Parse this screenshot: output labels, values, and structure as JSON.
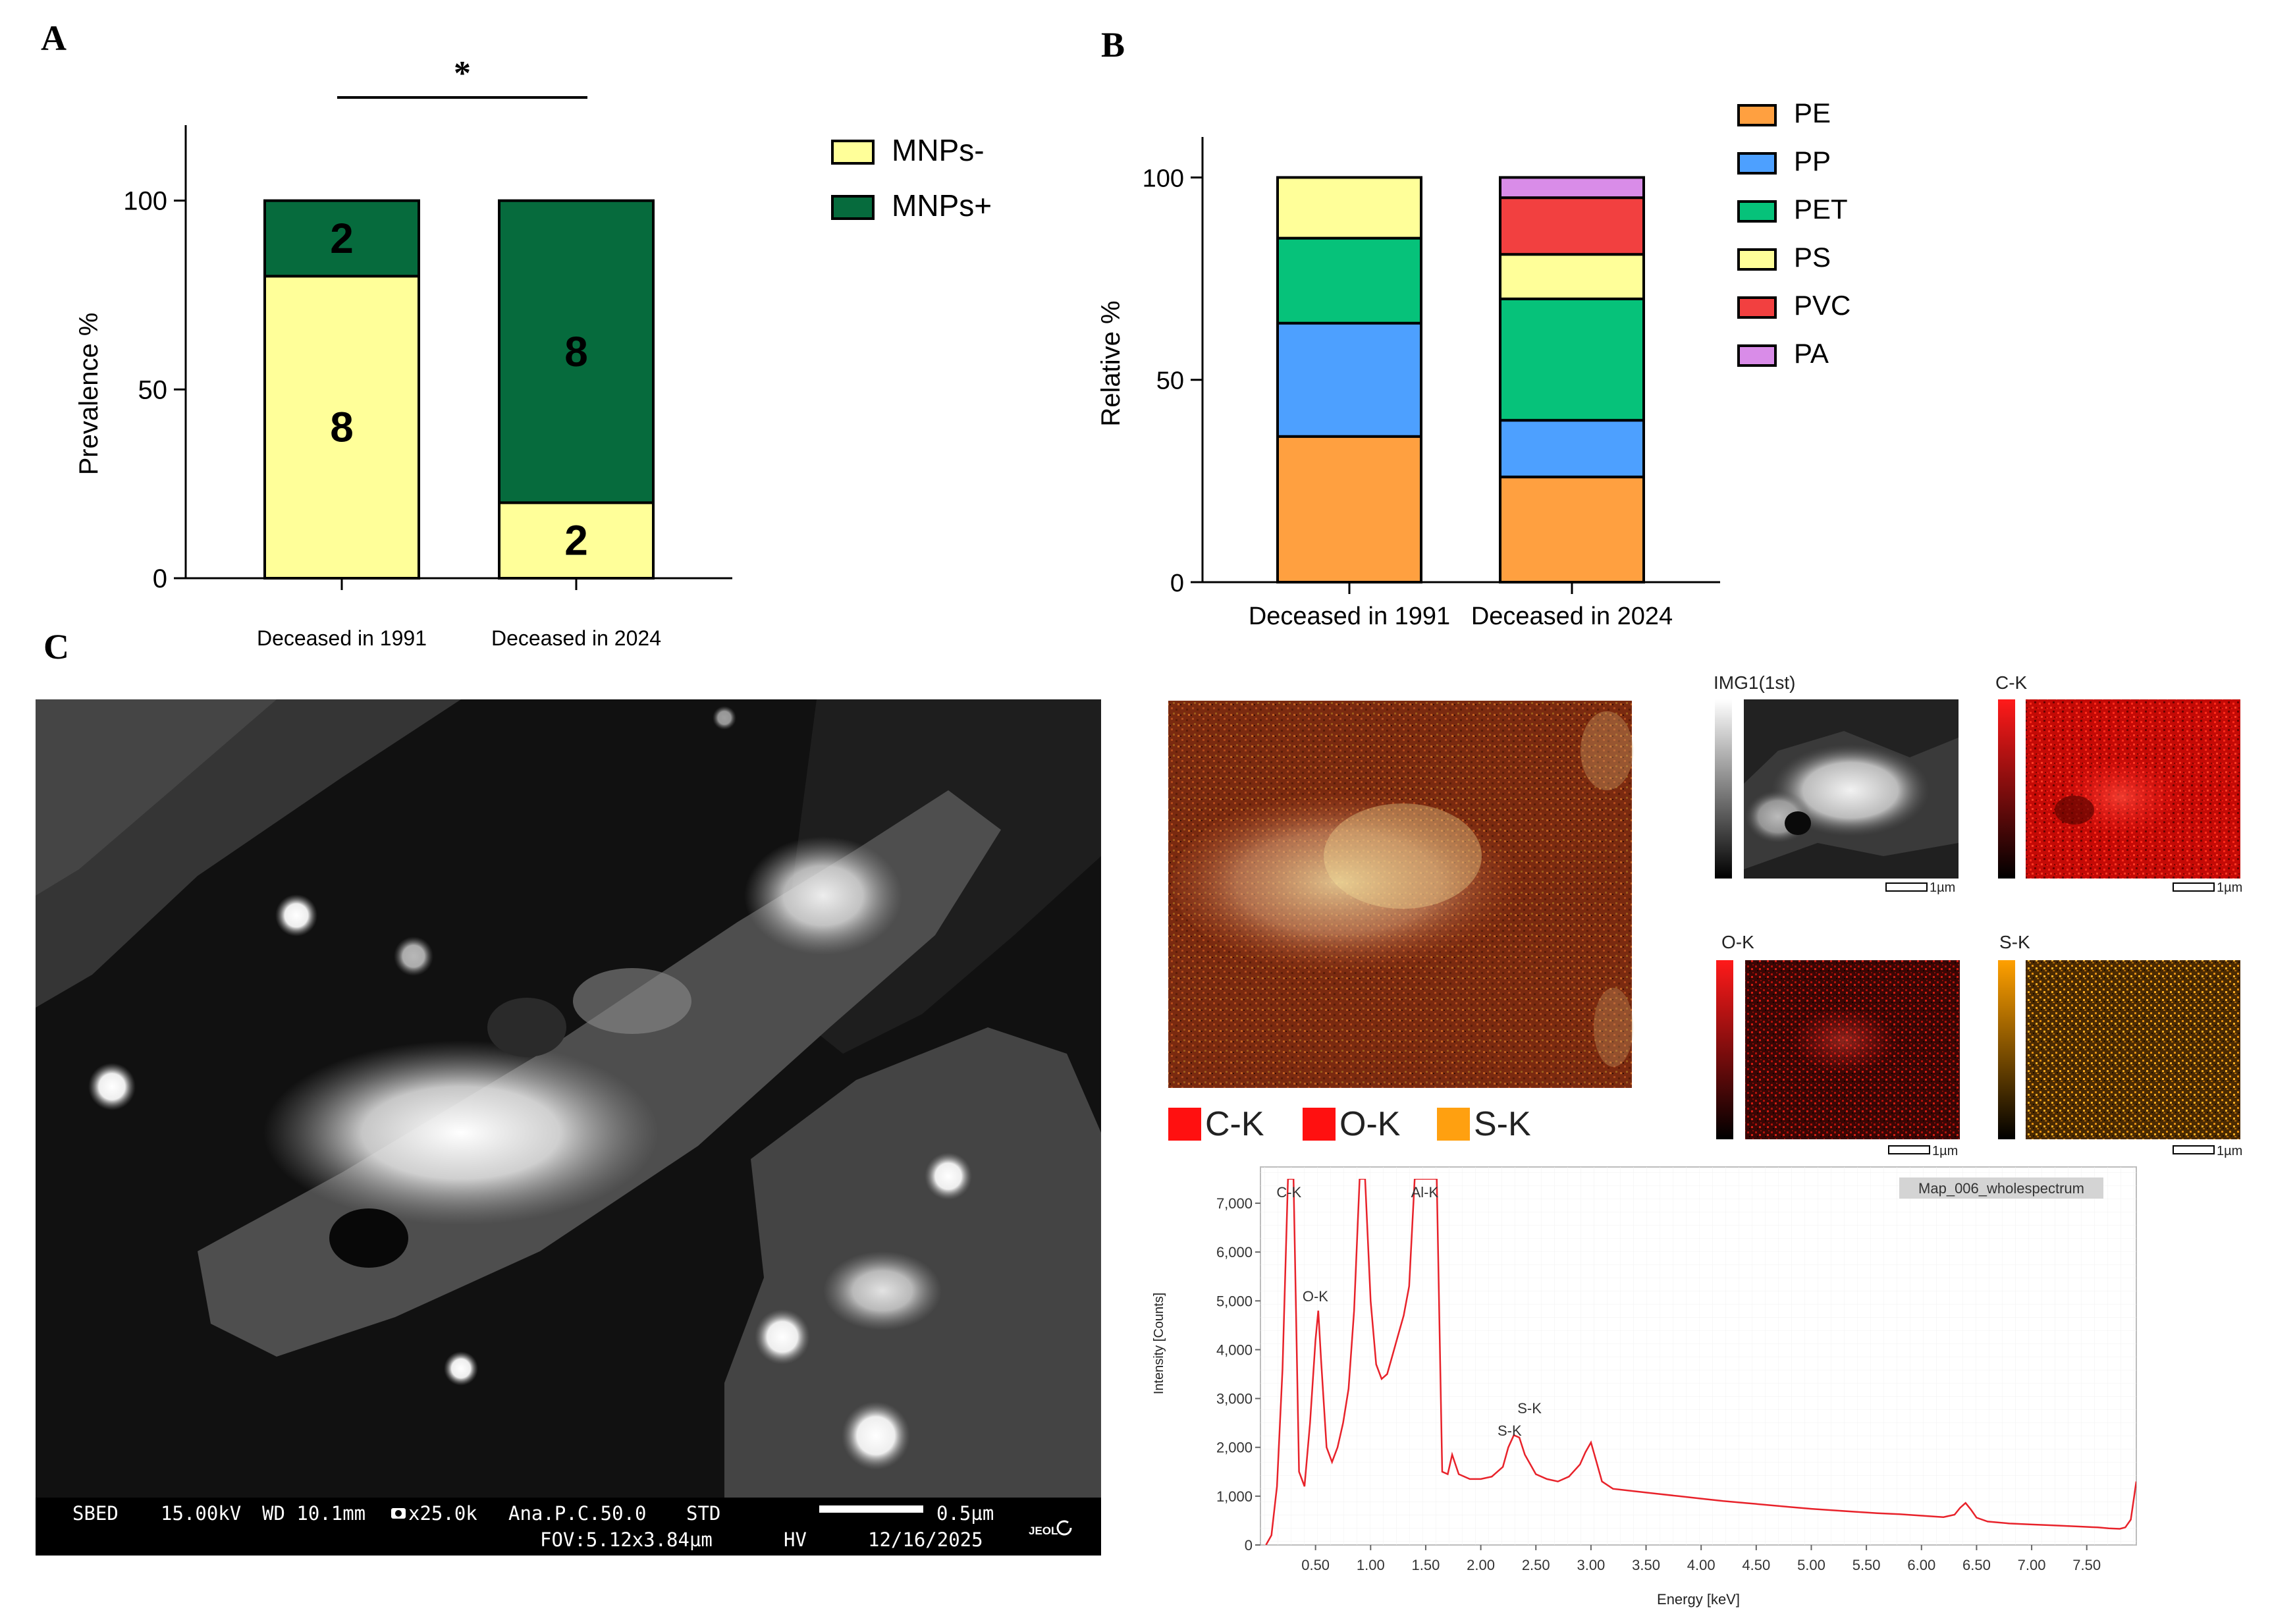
{
  "panels": {
    "a": "A",
    "b": "B",
    "c": "C"
  },
  "chart_data": [
    {
      "id": "A",
      "type": "bar",
      "stacked": true,
      "categories": [
        "Deceased in 1991",
        "Deceased in 2024"
      ],
      "series": [
        {
          "name": "MNPs-",
          "values": [
            80,
            20
          ],
          "labels": [
            "8",
            "2"
          ],
          "color": "#ffff99"
        },
        {
          "name": "MNPs+",
          "values": [
            20,
            80
          ],
          "labels": [
            "2",
            "8"
          ],
          "color": "#066b3d"
        }
      ],
      "ylabel": "Prevalence %",
      "ylim": [
        0,
        120
      ],
      "yticks": [
        0,
        50,
        100
      ],
      "significance": "*",
      "legend": "top-right"
    },
    {
      "id": "B",
      "type": "bar",
      "stacked": true,
      "categories": [
        "Deceased in 1991",
        "Deceased in 2024"
      ],
      "series": [
        {
          "name": "PE",
          "values": [
            36,
            26
          ],
          "color": "#ffa040"
        },
        {
          "name": "PP",
          "values": [
            28,
            14
          ],
          "color": "#4da0ff"
        },
        {
          "name": "PET",
          "values": [
            21,
            30
          ],
          "color": "#06c27a"
        },
        {
          "name": "PS",
          "values": [
            15,
            11
          ],
          "color": "#ffff99"
        },
        {
          "name": "PVC",
          "values": [
            0,
            14
          ],
          "color": "#f24040"
        },
        {
          "name": "PA",
          "values": [
            0,
            5
          ],
          "color": "#d98ce8"
        }
      ],
      "ylabel": "Relative %",
      "ylim": [
        0,
        110
      ],
      "yticks": [
        0,
        50,
        100
      ],
      "legend": "top-right"
    },
    {
      "id": "C-spectrum",
      "type": "line",
      "title": "Map_006_wholespectrum",
      "xlabel": "Energy [keV]",
      "ylabel": "Intensity [Counts]",
      "xlim": [
        0.0,
        7.95
      ],
      "ylim": [
        0,
        7500
      ],
      "xticks": [
        "0.50",
        "1.00",
        "1.50",
        "2.00",
        "2.50",
        "3.00",
        "3.50",
        "4.00",
        "4.50",
        "5.00",
        "5.50",
        "6.00",
        "6.50",
        "7.00",
        "7.50"
      ],
      "yticks": [
        "0",
        "1,000",
        "2,000",
        "3,000",
        "4,000",
        "5,000",
        "6,000",
        "7,000"
      ],
      "peaks": [
        {
          "label": "C-K",
          "energy": 0.277
        },
        {
          "label": "O-K",
          "energy": 0.525
        },
        {
          "label": "Al-K",
          "energy": 1.486
        },
        {
          "label": "S-K",
          "energy": 2.307
        },
        {
          "label": "S-K",
          "energy": 2.464
        }
      ],
      "series": [
        {
          "color": "#e8222a",
          "x": [
            0.05,
            0.1,
            0.15,
            0.2,
            0.25,
            0.277,
            0.3,
            0.35,
            0.4,
            0.45,
            0.5,
            0.525,
            0.55,
            0.6,
            0.65,
            0.7,
            0.75,
            0.8,
            0.85,
            0.9,
            0.95,
            1.0,
            1.05,
            1.1,
            1.15,
            1.2,
            1.25,
            1.3,
            1.35,
            1.4,
            1.45,
            1.486,
            1.52,
            1.55,
            1.6,
            1.65,
            1.7,
            1.74,
            1.8,
            1.9,
            2.0,
            2.1,
            2.2,
            2.25,
            2.3,
            2.35,
            2.4,
            2.45,
            2.5,
            2.6,
            2.7,
            2.8,
            2.9,
            2.95,
            3.0,
            3.05,
            3.1,
            3.2,
            3.4,
            3.6,
            3.8,
            4.0,
            4.2,
            4.4,
            4.6,
            4.8,
            5.0,
            5.2,
            5.4,
            5.6,
            5.8,
            6.0,
            6.2,
            6.3,
            6.35,
            6.4,
            6.45,
            6.5,
            6.6,
            6.8,
            7.0,
            7.2,
            7.4,
            7.6,
            7.7,
            7.8,
            7.85,
            7.9,
            7.95
          ],
          "y": [
            0,
            200,
            1200,
            3600,
            7500,
            7500,
            7500,
            1500,
            1200,
            2500,
            4200,
            4800,
            3800,
            2000,
            1700,
            2000,
            2500,
            3200,
            4800,
            7500,
            7500,
            5000,
            3700,
            3400,
            3500,
            3900,
            4300,
            4700,
            5300,
            7500,
            7500,
            7500,
            7500,
            7500,
            7500,
            1500,
            1450,
            1850,
            1450,
            1350,
            1350,
            1400,
            1600,
            2000,
            2250,
            2200,
            1850,
            1650,
            1450,
            1350,
            1300,
            1400,
            1650,
            1900,
            2100,
            1700,
            1300,
            1150,
            1100,
            1050,
            1000,
            950,
            900,
            860,
            820,
            780,
            740,
            710,
            680,
            650,
            630,
            600,
            570,
            620,
            760,
            860,
            720,
            560,
            480,
            440,
            420,
            400,
            380,
            360,
            340,
            330,
            360,
            520,
            1300
          ]
        }
      ]
    }
  ],
  "sem": {
    "info_left": "SBED",
    "info_kv": "15.00kV",
    "info_wd": "WD 10.1mm",
    "info_mag": "x25.0k",
    "info_ana": "Ana.P.C.50.0",
    "info_std": "STD",
    "info_scale": "0.5µm",
    "info_fov": "FOV:5.12x3.84µm",
    "info_hv": "HV",
    "info_date": "12/16/2025",
    "brand": "JEOL"
  },
  "eds": {
    "legend": [
      "C-K",
      "O-K",
      "S-K"
    ],
    "legend_colors": [
      "#ff1010",
      "#ff1010",
      "#ffa010"
    ],
    "maps": [
      {
        "label": "IMG1(1st)",
        "scale": "1µm"
      },
      {
        "label": "C-K",
        "scale": "1µm"
      },
      {
        "label": "O-K",
        "scale": "1µm"
      },
      {
        "label": "S-K",
        "scale": "1µm"
      }
    ]
  }
}
